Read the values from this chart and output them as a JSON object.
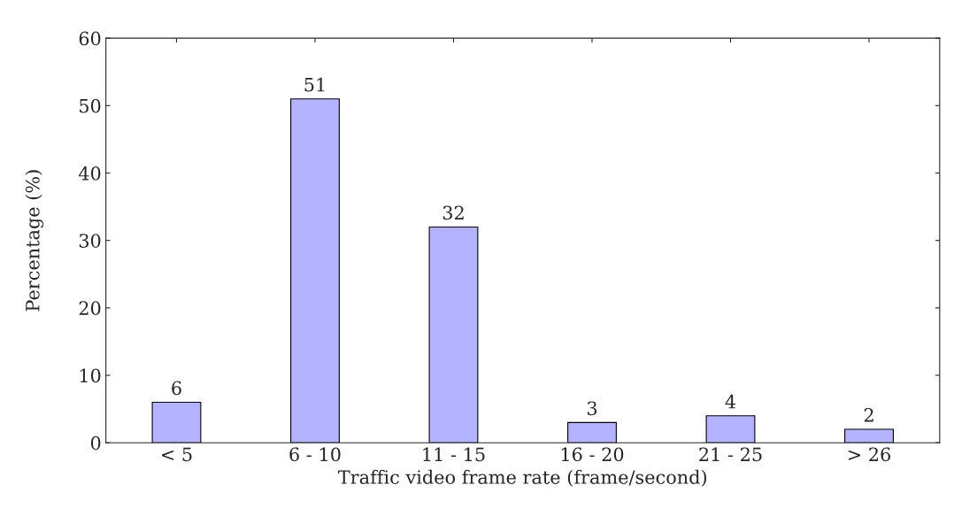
{
  "chart_data": {
    "type": "bar",
    "xlabel": "Traffic video frame rate (frame/second)",
    "ylabel": "Percentage (%)",
    "categories": [
      "< 5",
      "6 - 10",
      "11 - 15",
      "16 - 20",
      "21 - 25",
      "> 26"
    ],
    "values": [
      6,
      51,
      32,
      3,
      4,
      2
    ],
    "color": "#b3b3ff",
    "ylim": [
      0,
      60
    ],
    "yticks": [
      0,
      10,
      20,
      30,
      40,
      50,
      60
    ],
    "data_labels": true,
    "grid": false
  }
}
